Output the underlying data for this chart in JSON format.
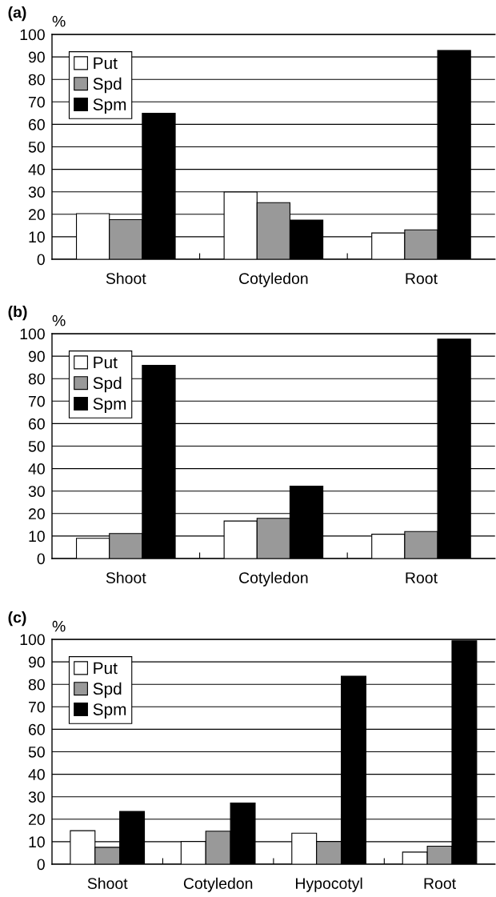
{
  "chart_data": [
    {
      "type": "bar",
      "title": "(a)",
      "ylabel": "%",
      "categories": [
        "Shoot",
        "Cotyledon",
        "Root"
      ],
      "series": [
        {
          "name": "Put",
          "color": "#ffffff",
          "values": [
            20.3,
            29.9,
            11.7
          ]
        },
        {
          "name": "Spd",
          "color": "#999999",
          "values": [
            17.6,
            25.2,
            13.1
          ]
        },
        {
          "name": "Spm",
          "color": "#000000",
          "values": [
            64.9,
            17.4,
            92.9
          ]
        }
      ],
      "ylim": [
        0,
        100
      ],
      "yticks": [
        0,
        10,
        20,
        30,
        40,
        50,
        60,
        70,
        80,
        90,
        100
      ],
      "grid": "y",
      "legend": "top left"
    },
    {
      "type": "bar",
      "title": "(b)",
      "ylabel": "%",
      "categories": [
        "Shoot",
        "Cotyledon",
        "Root"
      ],
      "series": [
        {
          "name": "Put",
          "color": "#ffffff",
          "values": [
            9.0,
            16.7,
            10.8
          ]
        },
        {
          "name": "Spd",
          "color": "#999999",
          "values": [
            11.1,
            17.9,
            12.0
          ]
        },
        {
          "name": "Spm",
          "color": "#000000",
          "values": [
            85.9,
            32.2,
            97.6
          ]
        }
      ],
      "ylim": [
        0,
        100
      ],
      "yticks": [
        0,
        10,
        20,
        30,
        40,
        50,
        60,
        70,
        80,
        90,
        100
      ],
      "grid": "y",
      "legend": "top left"
    },
    {
      "type": "bar",
      "title": "(c)",
      "ylabel": "%",
      "categories": [
        "Shoot",
        "Cotyledon",
        "Hypocotyl",
        "Root"
      ],
      "series": [
        {
          "name": "Put",
          "color": "#ffffff",
          "values": [
            14.9,
            10.1,
            13.8,
            5.4
          ]
        },
        {
          "name": "Spd",
          "color": "#999999",
          "values": [
            7.5,
            14.7,
            10.1,
            8.0
          ]
        },
        {
          "name": "Spm",
          "color": "#000000",
          "values": [
            23.5,
            27.2,
            83.6,
            99.4
          ]
        }
      ],
      "ylim": [
        0,
        100
      ],
      "yticks": [
        0,
        10,
        20,
        30,
        40,
        50,
        60,
        70,
        80,
        90,
        100
      ],
      "grid": "y",
      "legend": "top left"
    }
  ]
}
